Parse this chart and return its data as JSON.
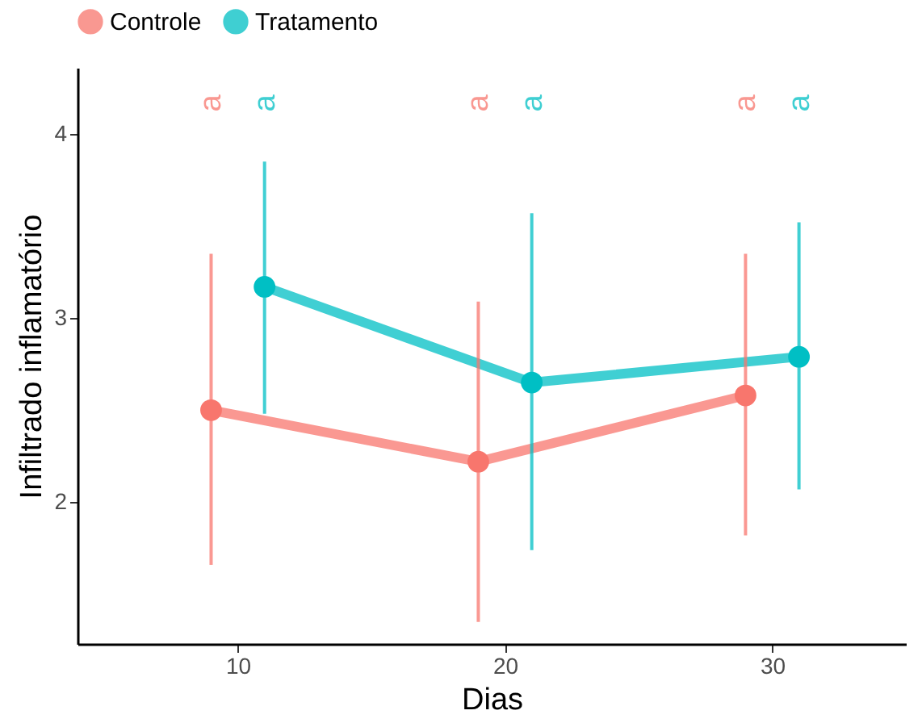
{
  "chart_data": {
    "type": "line",
    "xlabel": "Dias",
    "ylabel": "Infiltrado inflamatório",
    "series": [
      {
        "name": "Controle",
        "color": "#f8766d",
        "x": [
          9,
          19,
          29
        ],
        "values": [
          2.5,
          2.22,
          2.58
        ],
        "errors": [
          [
            1.66,
            3.35
          ],
          [
            1.35,
            3.09
          ],
          [
            1.82,
            3.35
          ]
        ]
      },
      {
        "name": "Tratamento",
        "color": "#00bfc4",
        "x": [
          11,
          21,
          31
        ],
        "values": [
          3.17,
          2.65,
          2.79
        ],
        "errors": [
          [
            2.48,
            3.85
          ],
          [
            1.74,
            3.57
          ],
          [
            2.07,
            3.52
          ]
        ]
      }
    ],
    "xlim": [
      4,
      35
    ],
    "xticks": [
      10,
      20,
      30
    ],
    "ylim": [
      1.23,
      4.36
    ],
    "yticks": [
      2,
      3,
      4
    ],
    "annotations": [
      "a",
      "a",
      "a",
      "a",
      "a",
      "a"
    ],
    "marker": "circle",
    "grid": false,
    "legend": "top"
  }
}
